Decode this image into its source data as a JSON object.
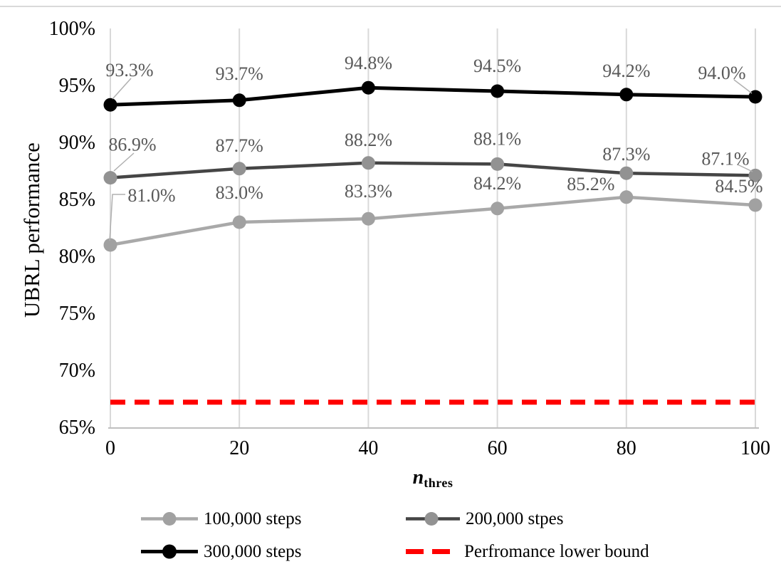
{
  "chart_data": {
    "type": "line",
    "x": [
      0,
      20,
      40,
      60,
      80,
      100
    ],
    "xticks": [
      "0",
      "20",
      "40",
      "60",
      "80",
      "100"
    ],
    "xlabel_main": "n",
    "xlabel_sub": "thres",
    "ylabel": "UBRL performance",
    "ylim_percent": [
      65,
      100
    ],
    "ytick_step_percent": 5,
    "yticks": [
      "100%",
      "95%",
      "90%",
      "85%",
      "80%",
      "75%",
      "70%",
      "65%"
    ],
    "grid": "vertical-only",
    "legend_position": "bottom-two-columns",
    "series": [
      {
        "name": "100,000 steps",
        "values": [
          81.0,
          83.0,
          83.3,
          84.2,
          85.2,
          84.5
        ],
        "labels": [
          "81.0%",
          "83.0%",
          "83.3%",
          "84.2%",
          "85.2%",
          "84.5%"
        ],
        "line_color": "#A9A9A9",
        "marker_color": "#A1A1A1",
        "style": "solid-with-markers"
      },
      {
        "name": "200,000 stpes",
        "values": [
          86.9,
          87.7,
          88.2,
          88.1,
          87.3,
          87.1
        ],
        "labels": [
          "86.9%",
          "87.7%",
          "88.2%",
          "88.1%",
          "87.3%",
          "87.1%"
        ],
        "line_color": "#454545",
        "marker_color": "#929292",
        "style": "solid-with-markers"
      },
      {
        "name": "300,000 steps",
        "values": [
          93.3,
          93.7,
          94.8,
          94.5,
          94.2,
          94.0
        ],
        "labels": [
          "93.3%",
          "93.7%",
          "94.8%",
          "94.5%",
          "94.2%",
          "94.0%"
        ],
        "line_color": "#000000",
        "marker_color": "#000000",
        "style": "solid-with-markers"
      },
      {
        "name": "Perfromance lower bound",
        "constant_value": 67.2,
        "labels": [],
        "line_color": "#FF0000",
        "style": "dashed"
      }
    ],
    "colors": {
      "data_label": "#595959",
      "gridline": "#D9D9D9",
      "axis_line": "#BFBFBF",
      "leader_line": "#B0B0B0",
      "tick_label": "#000000"
    }
  }
}
